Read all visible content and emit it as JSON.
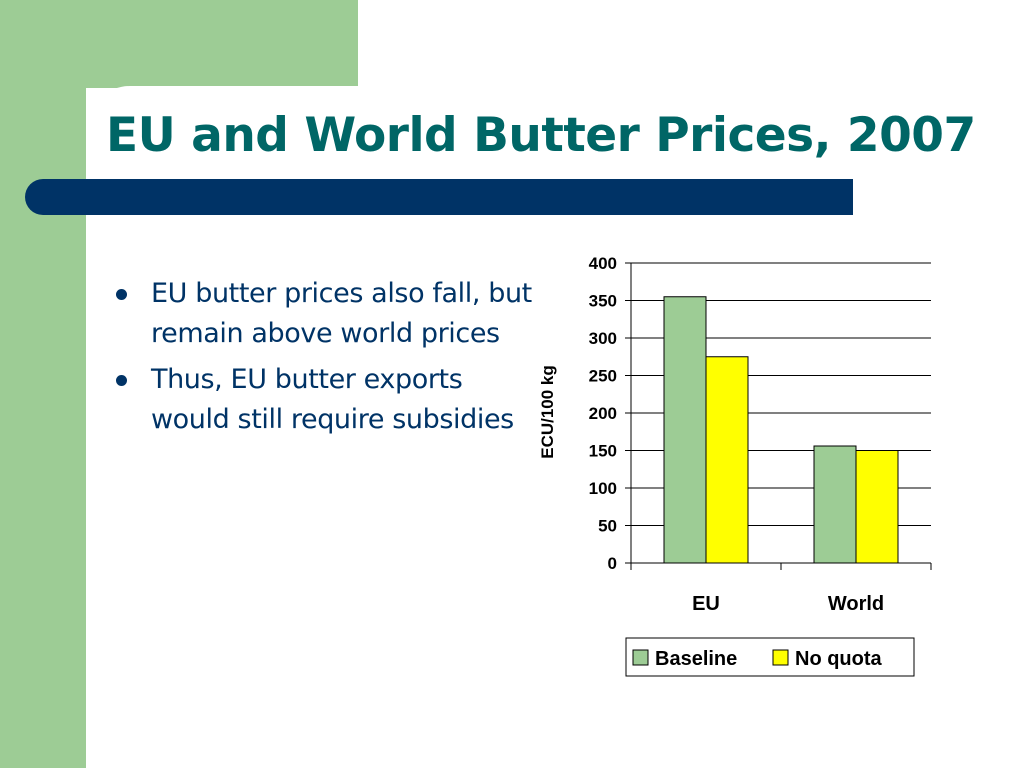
{
  "slide": {
    "title": "EU and World Butter Prices, 2007",
    "bullets": [
      {
        "text": "EU butter prices also fall, but remain above world prices"
      },
      {
        "text": "Thus, EU butter exports would still require subsidies"
      }
    ]
  },
  "colors": {
    "accent_green": "#9dcc95",
    "title_teal": "#006666",
    "navy": "#003366",
    "baseline": "#9dcc95",
    "no_quota": "#ffff00"
  },
  "chart_data": {
    "type": "bar",
    "categories": [
      "EU",
      "World"
    ],
    "series": [
      {
        "name": "Baseline",
        "values": [
          355,
          156
        ]
      },
      {
        "name": "No quota",
        "values": [
          275,
          150
        ]
      }
    ],
    "title": "",
    "xlabel": "",
    "ylabel": "ECU/100 kg",
    "ylim": [
      0,
      400
    ],
    "yticks": [
      "0",
      "50",
      "100",
      "150",
      "200",
      "250",
      "300",
      "350",
      "400"
    ],
    "grid": true,
    "legend_position": "bottom"
  }
}
